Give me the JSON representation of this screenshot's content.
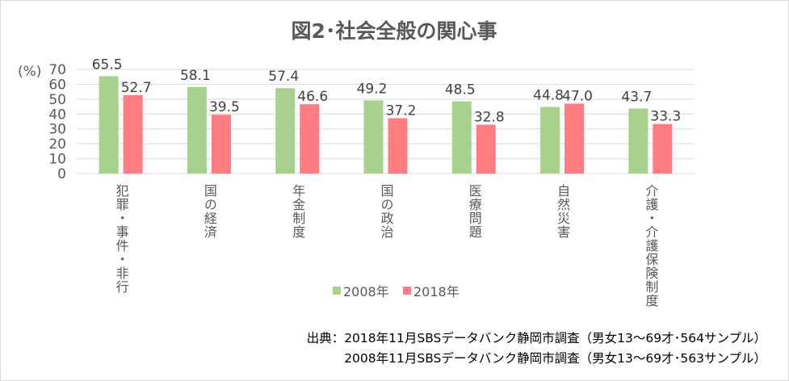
{
  "chart_data": {
    "type": "bar",
    "title": "図2･社会全般の関心事",
    "ylabel": "(%)",
    "ylim": [
      0,
      70
    ],
    "yticks": [
      0,
      10,
      20,
      30,
      40,
      50,
      60,
      70
    ],
    "grid": true,
    "legend_position": "bottom",
    "categories": [
      "犯罪・事件・非行",
      "国の経済",
      "年金制度",
      "国の政治",
      "医療問題",
      "自然災害",
      "介護・介護保険制度"
    ],
    "series": [
      {
        "name": "2008年",
        "color": "#a9d18e",
        "values": [
          65.5,
          58.1,
          57.4,
          49.2,
          48.5,
          44.8,
          43.7
        ]
      },
      {
        "name": "2018年",
        "color": "#ff7c80",
        "values": [
          52.7,
          39.5,
          46.6,
          37.2,
          32.8,
          47.0,
          33.3
        ]
      }
    ]
  },
  "source": {
    "line1": "出典：2018年11月SBSデータバンク静岡市調査（男女13～69才･564サンプル）",
    "line2": "2008年11月SBSデータバンク静岡市調査（男女13～69才･563サンプル）"
  }
}
